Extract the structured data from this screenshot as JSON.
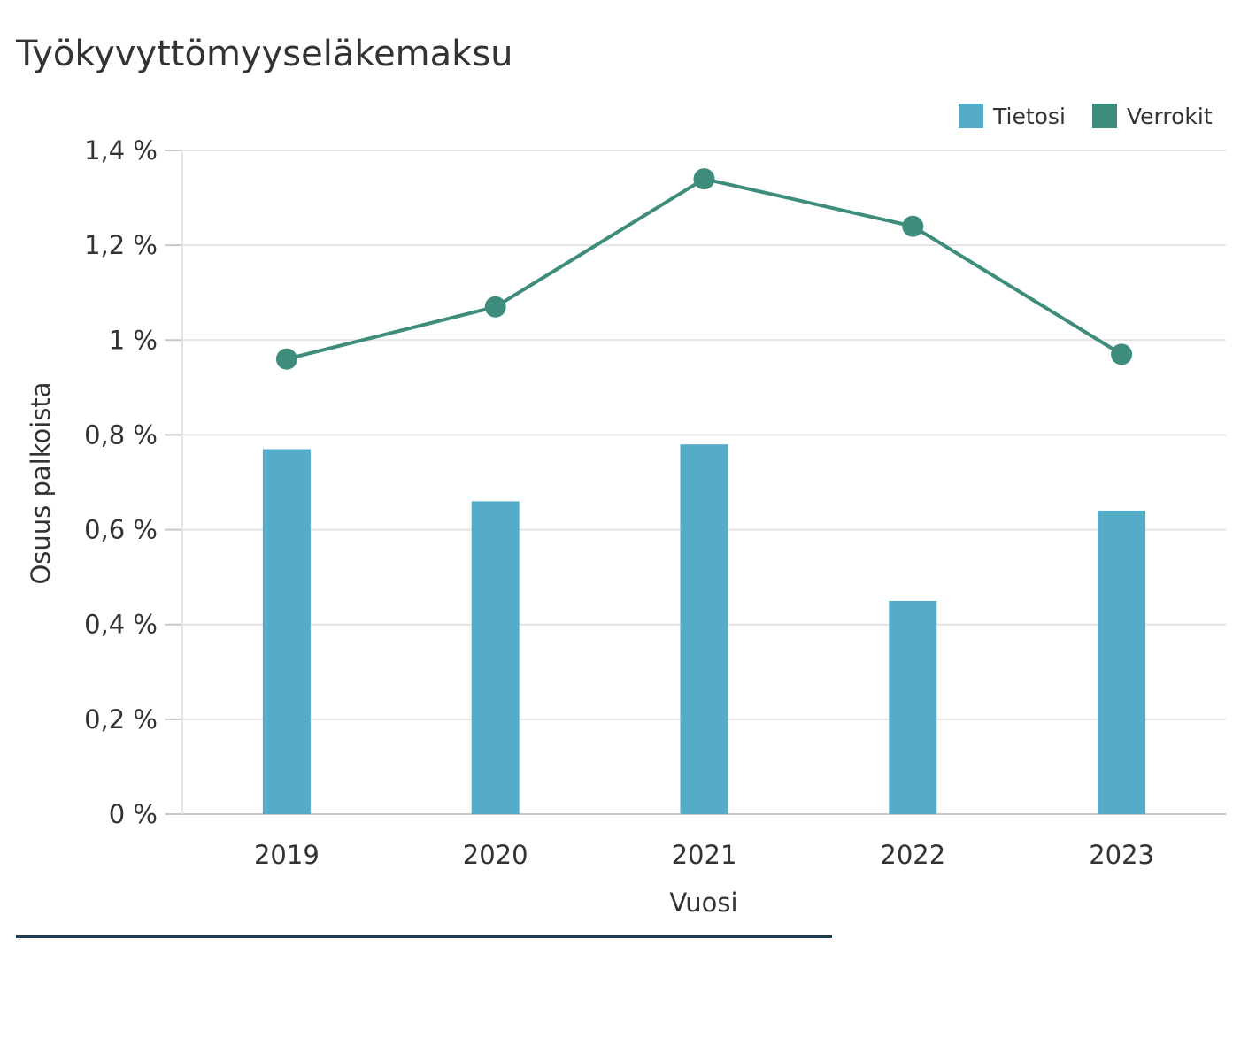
{
  "chart_data": {
    "type": "bar",
    "title": "Työkyvyttömyyseläkemaksu",
    "xlabel": "Vuosi",
    "ylabel": "Osuus palkoista",
    "categories": [
      "2019",
      "2020",
      "2021",
      "2022",
      "2023"
    ],
    "series": [
      {
        "name": "Tietosi",
        "type": "bar",
        "color": "#55acc8",
        "values": [
          0.77,
          0.66,
          0.78,
          0.45,
          0.64
        ]
      },
      {
        "name": "Verrokit",
        "type": "line",
        "color": "#3d8c7c",
        "values": [
          0.96,
          1.07,
          1.34,
          1.24,
          0.97
        ]
      }
    ],
    "ylim": [
      0,
      1.4
    ],
    "yticks": [
      0,
      0.2,
      0.4,
      0.6,
      0.8,
      1,
      1.2,
      1.4
    ],
    "ytick_labels": [
      "0 %",
      "0,2 %",
      "0,4 %",
      "0,6 %",
      "0,8 %",
      "1 %",
      "1,2 %",
      "1,4 %"
    ],
    "grid": true,
    "legend_position": "top-right"
  }
}
